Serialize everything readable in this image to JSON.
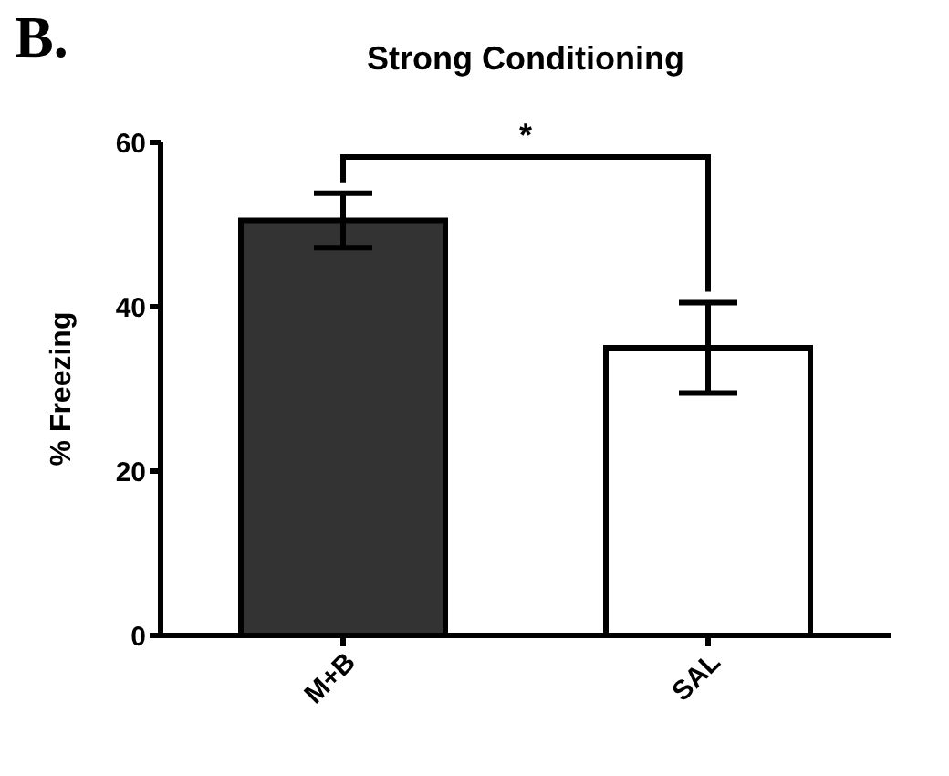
{
  "chart_data": {
    "type": "bar",
    "title": "Strong Conditioning",
    "ylabel": "% Freezing",
    "categories": [
      "M+B",
      "SAL"
    ],
    "values": [
      50.5,
      35
    ],
    "colors": [
      "#333333",
      "#ffffff"
    ],
    "errors": [
      3.3,
      5.5
    ],
    "ylim": [
      0,
      60
    ],
    "yticks": [
      0,
      20,
      40,
      60
    ],
    "annotations": [
      "B.",
      "*"
    ]
  }
}
